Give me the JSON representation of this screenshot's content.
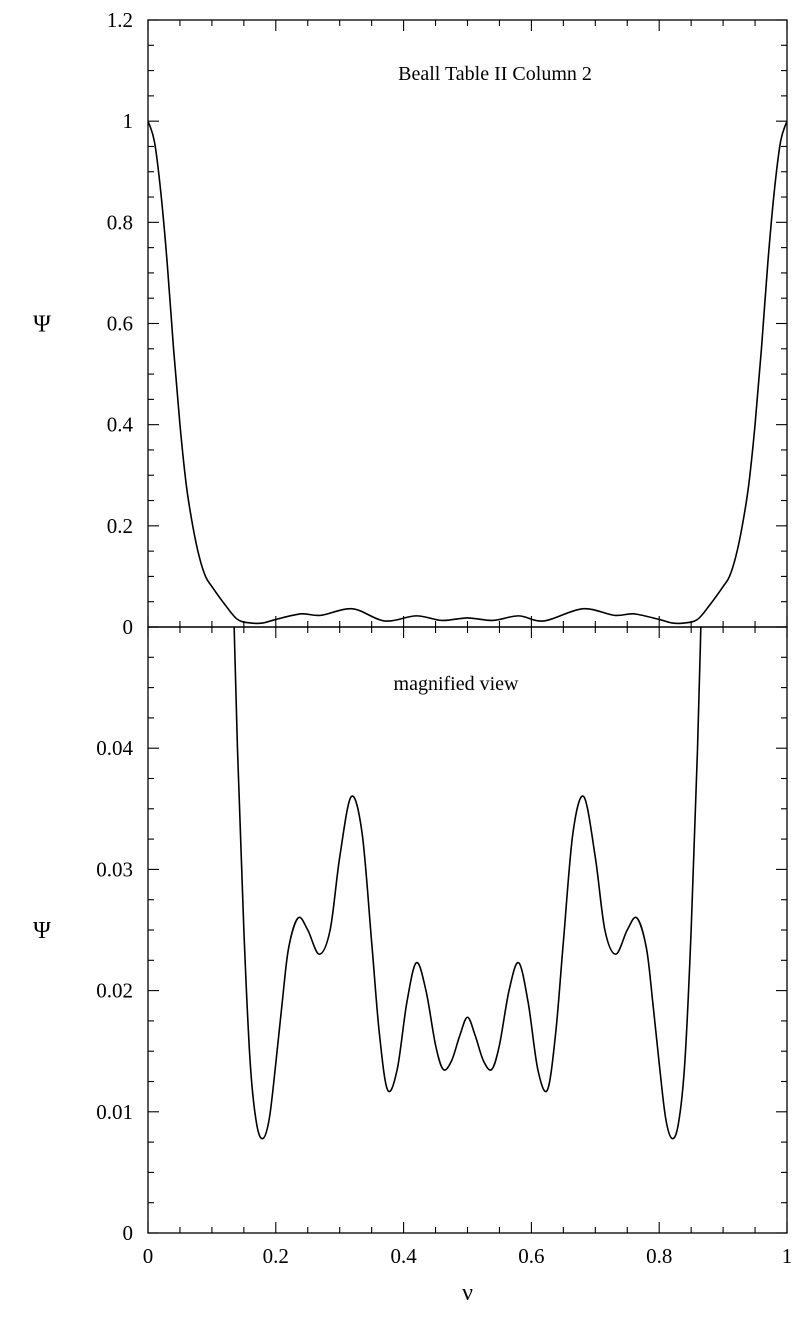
{
  "chart_data": [
    {
      "type": "line",
      "title": "",
      "annotation": "Beall Table II Column 2",
      "xlabel": "",
      "ylabel": "Ψ",
      "xlim": [
        0,
        1
      ],
      "ylim": [
        0,
        1.2
      ],
      "x_ticks": [
        0,
        0.2,
        0.4,
        0.6,
        0.8,
        1
      ],
      "y_ticks": [
        0,
        0.2,
        0.4,
        0.6,
        0.8,
        1,
        1.2
      ],
      "y_tick_labels": [
        "0",
        "0.2",
        "0.4",
        "0.6",
        "0.8",
        "1",
        "1.2"
      ],
      "grid": false,
      "series": [
        {
          "x": [
            0,
            0.01,
            0.02,
            0.03,
            0.04,
            0.05,
            0.06,
            0.07,
            0.08,
            0.09,
            0.1,
            0.12,
            0.14,
            0.16,
            0.18,
            0.2,
            0.24,
            0.27,
            0.32,
            0.37,
            0.42,
            0.46,
            0.5,
            0.54,
            0.58,
            0.62,
            0.68,
            0.73,
            0.76,
            0.8,
            0.82,
            0.84,
            0.86,
            0.88,
            0.9,
            0.91,
            0.92,
            0.93,
            0.94,
            0.95,
            0.96,
            0.97,
            0.98,
            0.99,
            1
          ],
          "y": [
            1.0,
            0.96,
            0.86,
            0.72,
            0.55,
            0.4,
            0.28,
            0.2,
            0.14,
            0.1,
            0.08,
            0.045,
            0.015,
            0.008,
            0.008,
            0.015,
            0.026,
            0.023,
            0.036,
            0.012,
            0.022,
            0.013,
            0.018,
            0.013,
            0.022,
            0.012,
            0.036,
            0.023,
            0.026,
            0.015,
            0.008,
            0.008,
            0.015,
            0.045,
            0.08,
            0.1,
            0.14,
            0.2,
            0.28,
            0.4,
            0.55,
            0.72,
            0.86,
            0.96,
            1.0
          ]
        }
      ]
    },
    {
      "type": "line",
      "title": "",
      "annotation": "magnified view",
      "xlabel": "ν",
      "ylabel": "Ψ",
      "xlim": [
        0,
        1
      ],
      "ylim": [
        0,
        0.05
      ],
      "x_ticks": [
        0,
        0.2,
        0.4,
        0.6,
        0.8,
        1
      ],
      "x_tick_labels": [
        "0",
        "0.2",
        "0.4",
        "0.6",
        "0.8",
        "1"
      ],
      "y_ticks": [
        0,
        0.01,
        0.02,
        0.03,
        0.04
      ],
      "y_tick_labels": [
        "0",
        "0.01",
        "0.02",
        "0.03",
        "0.04"
      ],
      "grid": false,
      "series": [
        {
          "x": [
            0.13,
            0.14,
            0.15,
            0.16,
            0.17,
            0.18,
            0.19,
            0.2,
            0.21,
            0.22,
            0.235,
            0.25,
            0.268,
            0.285,
            0.3,
            0.318,
            0.335,
            0.35,
            0.362,
            0.375,
            0.39,
            0.405,
            0.42,
            0.435,
            0.45,
            0.462,
            0.475,
            0.488,
            0.5,
            0.512,
            0.525,
            0.538,
            0.55,
            0.565,
            0.58,
            0.595,
            0.61,
            0.625,
            0.638,
            0.65,
            0.665,
            0.682,
            0.7,
            0.715,
            0.732,
            0.75,
            0.765,
            0.78,
            0.79,
            0.8,
            0.81,
            0.82,
            0.83,
            0.84,
            0.85,
            0.86,
            0.87
          ],
          "y": [
            0.06,
            0.04,
            0.025,
            0.014,
            0.009,
            0.0078,
            0.0095,
            0.014,
            0.019,
            0.0235,
            0.026,
            0.025,
            0.023,
            0.025,
            0.031,
            0.036,
            0.033,
            0.024,
            0.0165,
            0.0118,
            0.0135,
            0.019,
            0.0223,
            0.02,
            0.0155,
            0.0135,
            0.0142,
            0.0163,
            0.0178,
            0.0163,
            0.0142,
            0.0135,
            0.0155,
            0.02,
            0.0223,
            0.019,
            0.0135,
            0.0118,
            0.0165,
            0.024,
            0.033,
            0.036,
            0.031,
            0.025,
            0.023,
            0.025,
            0.026,
            0.0235,
            0.019,
            0.014,
            0.0095,
            0.0078,
            0.009,
            0.014,
            0.025,
            0.04,
            0.06
          ]
        }
      ]
    }
  ]
}
